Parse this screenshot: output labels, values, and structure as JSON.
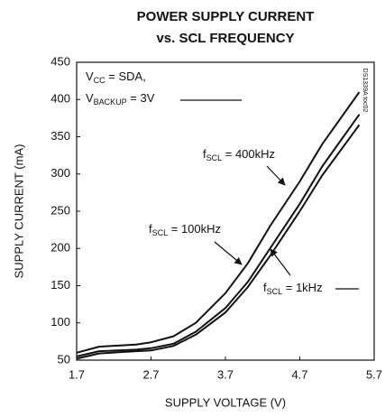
{
  "chart_data": {
    "type": "line",
    "title": [
      "POWER SUPPLY CURRENT",
      "vs. SCL FREQUENCY"
    ],
    "x_label": "SUPPLY VOLTAGE (V)",
    "y_label": "SUPPLY CURRENT (mA)",
    "side_note": "DS1339A toc02",
    "x": [
      1.7,
      2.0,
      2.5,
      2.7,
      3.0,
      3.3,
      3.7,
      4.0,
      4.3,
      4.7,
      5.0,
      5.5
    ],
    "series": [
      {
        "name": "400kHz",
        "color": "#111111",
        "values": [
          60,
          68,
          71,
          74,
          82,
          100,
          140,
          180,
          230,
          290,
          340,
          410
        ]
      },
      {
        "name": "100kHz",
        "color": "#111111",
        "values": [
          55,
          62,
          64,
          66,
          72,
          88,
          120,
          155,
          200,
          260,
          310,
          380
        ]
      },
      {
        "name": "1kHz",
        "color": "#111111",
        "values": [
          52,
          59,
          62,
          63,
          69,
          84,
          114,
          148,
          190,
          250,
          298,
          366
        ]
      }
    ],
    "xlim": [
      1.7,
      5.7
    ],
    "xticks": [
      1.7,
      2.7,
      3.7,
      4.7,
      5.7
    ],
    "ylim": [
      50,
      450
    ],
    "yticks": [
      50,
      100,
      150,
      200,
      250,
      300,
      350,
      400,
      450
    ],
    "annotations": [
      [
        {
          "text": "V"
        },
        {
          "text": "CC",
          "sub": true
        },
        {
          "text": " = SDA,"
        }
      ],
      [
        {
          "text": "V"
        },
        {
          "text": "BACKUP",
          "sub": true
        },
        {
          "text": " = 3V"
        }
      ],
      [
        {
          "text": "f"
        },
        {
          "text": "SCL",
          "sub": true
        },
        {
          "text": " = 400kHz"
        }
      ],
      [
        {
          "text": "f"
        },
        {
          "text": "SCL",
          "sub": true
        },
        {
          "text": " = 100kHz"
        }
      ],
      [
        {
          "text": "f"
        },
        {
          "text": "SCL",
          "sub": true
        },
        {
          "text": " = 1kHz"
        }
      ]
    ]
  }
}
